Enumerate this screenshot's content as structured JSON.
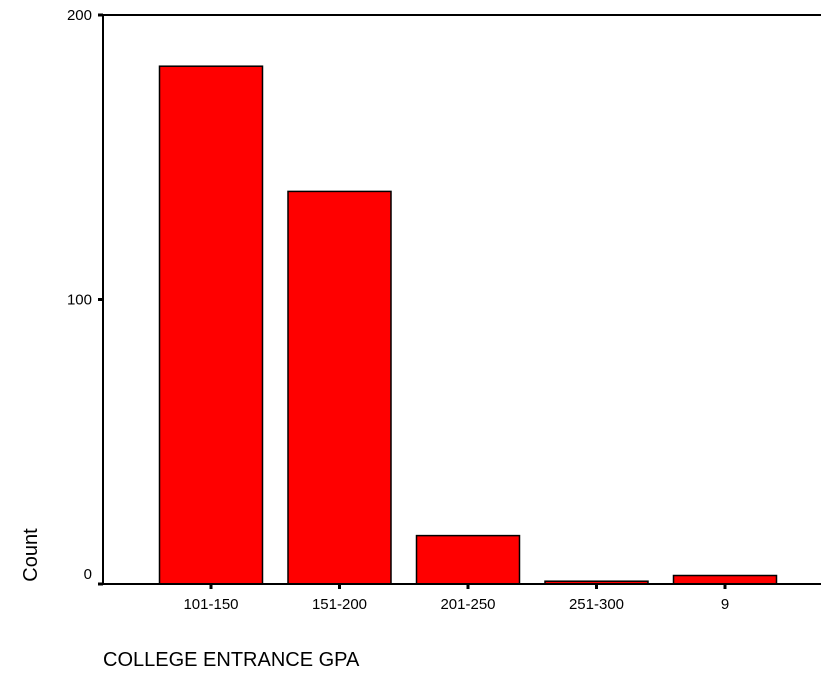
{
  "chart_data": {
    "type": "bar",
    "categories": [
      "101-150",
      "151-200",
      "201-250",
      "251-300",
      "9"
    ],
    "values": [
      182,
      138,
      17,
      1,
      3
    ],
    "xlabel": "COLLEGE ENTRANCE GPA",
    "ylabel": "Count",
    "ylim": [
      0,
      200
    ],
    "yticks": [
      0,
      100,
      200
    ],
    "grid": false,
    "bar_color": "#ff0000",
    "bar_edge_color": "#000000"
  }
}
